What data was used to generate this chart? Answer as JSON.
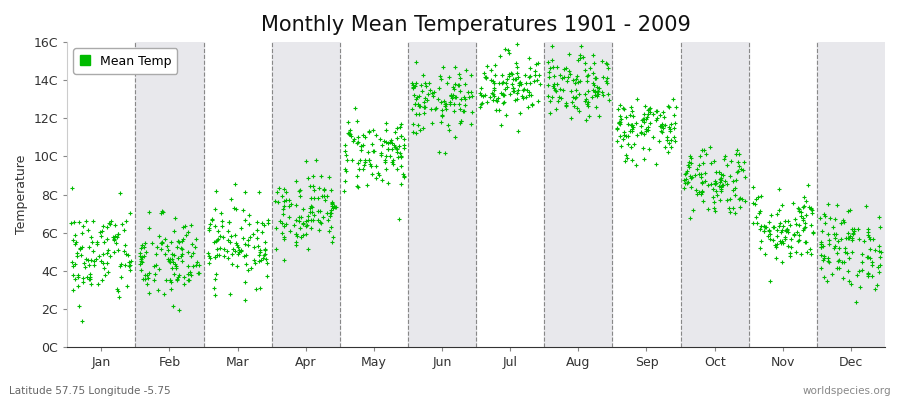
{
  "title": "Monthly Mean Temperatures 1901 - 2009",
  "ylabel": "Temperature",
  "xlabel_bottom_left": "Latitude 57.75 Longitude -5.75",
  "xlabel_bottom_right": "worldspecies.org",
  "legend_label": "Mean Temp",
  "dot_color": "#00BB00",
  "background_color": "#FFFFFF",
  "band_color": "#E8E8EC",
  "ylim": [
    0,
    16
  ],
  "yticks": [
    0,
    2,
    4,
    6,
    8,
    10,
    12,
    14,
    16
  ],
  "ytick_labels": [
    "0C",
    "2C",
    "4C",
    "6C",
    "8C",
    "10C",
    "12C",
    "14C",
    "16C"
  ],
  "months": [
    "Jan",
    "Feb",
    "Mar",
    "Apr",
    "May",
    "Jun",
    "Jul",
    "Aug",
    "Sep",
    "Oct",
    "Nov",
    "Dec"
  ],
  "monthly_means": [
    4.8,
    4.5,
    5.5,
    7.2,
    10.2,
    12.8,
    13.8,
    13.6,
    11.5,
    8.8,
    6.3,
    5.2
  ],
  "monthly_stds": [
    1.3,
    1.2,
    1.1,
    1.0,
    1.0,
    0.9,
    0.85,
    0.85,
    0.85,
    0.95,
    1.0,
    1.1
  ],
  "n_years": 109,
  "seed": 42,
  "title_fontsize": 15,
  "axis_fontsize": 9,
  "tick_fontsize": 9,
  "legend_fontsize": 9,
  "marker_size": 9,
  "dpi": 100,
  "fig_width": 9.0,
  "fig_height": 4.0
}
